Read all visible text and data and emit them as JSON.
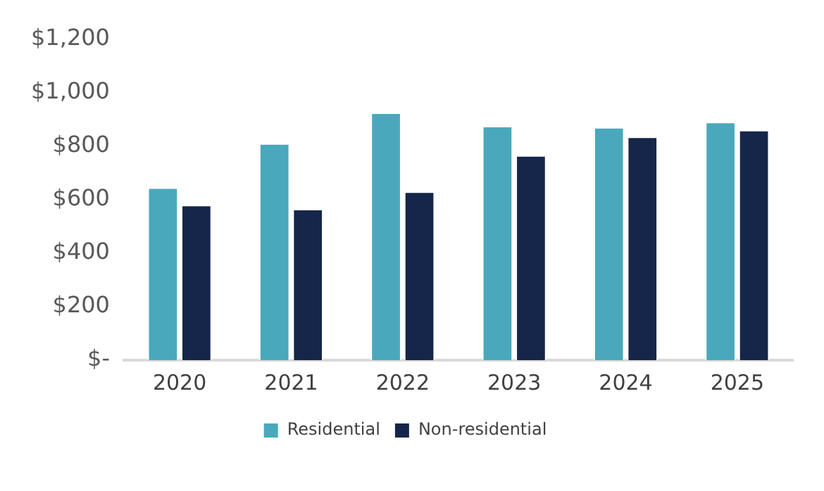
{
  "chart_data": {
    "type": "bar",
    "categories": [
      "2020",
      "2021",
      "2022",
      "2023",
      "2024",
      "2025"
    ],
    "series": [
      {
        "name": "Residential",
        "color": "#4aa8bc",
        "values": [
          645,
          810,
          925,
          875,
          870,
          890
        ]
      },
      {
        "name": "Non-residential",
        "color": "#16264a",
        "values": [
          580,
          565,
          630,
          765,
          835,
          860
        ]
      }
    ],
    "ylim": [
      0,
      1200
    ],
    "yticks": [
      {
        "value": 0,
        "label": "$-"
      },
      {
        "value": 200,
        "label": "$200"
      },
      {
        "value": 400,
        "label": "$400"
      },
      {
        "value": 600,
        "label": "$600"
      },
      {
        "value": 800,
        "label": "$800"
      },
      {
        "value": 1000,
        "label": "$1,000"
      },
      {
        "value": 1200,
        "label": "$1,200"
      }
    ],
    "grid": false,
    "legend": "bottom"
  }
}
